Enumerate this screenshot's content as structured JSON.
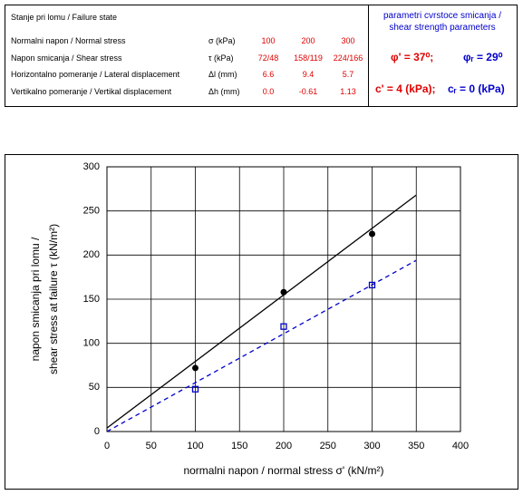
{
  "table": {
    "title": "Stanje pri lomu / Failure state",
    "rows": [
      [
        "Normalni napon / Normal stress",
        "σ  (kPa)",
        "100",
        "200",
        "300"
      ],
      [
        "Napon smicanja / Shear stress",
        "τ (kPa)",
        "72/48",
        "158/119",
        "224/166"
      ],
      [
        "Horizontalno pomeranje / Lateral displacement",
        "Δl (mm)",
        "6.6",
        "9.4",
        "5.7"
      ],
      [
        "Vertikalno pomeranje / Vertikal displacement",
        "Δh (mm)",
        "0.0",
        "-0.61",
        "1.13"
      ]
    ],
    "params_title": [
      "parametri cvrstoce smicanja /",
      "shear strength parameters"
    ],
    "phi_peak": "φ' = 37⁰;",
    "phi_res": "φᵣ = 29⁰",
    "c_peak": "c' = 4 (kPa);",
    "c_res": "cᵣ = 0 (kPa)"
  },
  "chart_data": {
    "type": "scatter",
    "y_label": [
      "napon smicanja pri lomu /",
      "shear  stress at  failure τ (kN/m²)"
    ],
    "x_label": "normalni napon / normal  stress σ' (kN/m²)",
    "series": [
      {
        "color": "#000000",
        "marker": "circle",
        "x": [
          100,
          200,
          300
        ],
        "values": [
          72,
          158,
          224
        ]
      },
      {
        "color": "#0000cc",
        "marker": "square",
        "x": [
          100,
          200,
          300
        ],
        "values": [
          48,
          119,
          166
        ]
      }
    ],
    "lines": [
      {
        "color": "#000000",
        "dashed": false,
        "x": [
          0,
          350
        ],
        "values": [
          4,
          268
        ]
      },
      {
        "color": "#0000cc",
        "dashed": true,
        "x": [
          0,
          350
        ],
        "values": [
          0,
          194
        ]
      }
    ],
    "xlim": [
      0,
      400
    ],
    "xticks": [
      0,
      50,
      100,
      150,
      200,
      250,
      300,
      350,
      400
    ],
    "ylim": [
      0,
      300
    ],
    "yticks": [
      0,
      50,
      100,
      150,
      200,
      250,
      300
    ],
    "grid": true
  }
}
